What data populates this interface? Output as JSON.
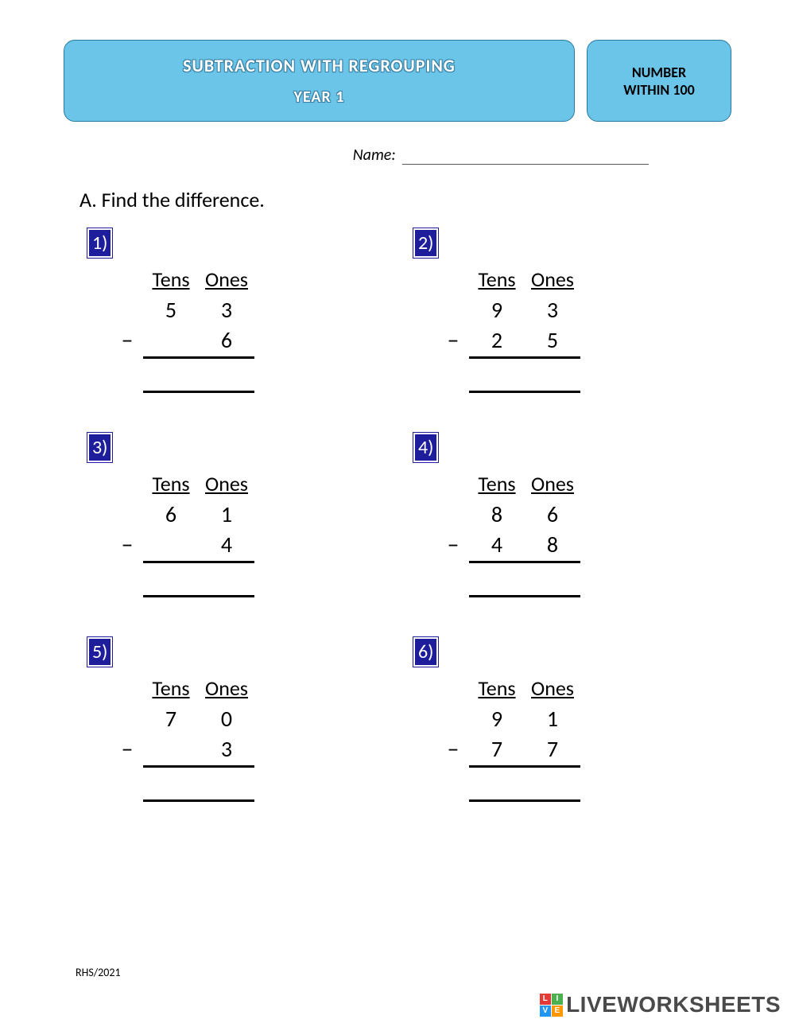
{
  "header": {
    "title": "SUBTRACTION WITH REGROUPING",
    "subtitle": "YEAR 1",
    "side_line1": "NUMBER",
    "side_line2": "WITHIN 100",
    "box_bg": "#6bc5e8",
    "box_border": "#2a7aa0"
  },
  "name_label": "Name:",
  "instruction": "A. Find the difference.",
  "column_headers": {
    "tens": "Tens",
    "ones": "Ones"
  },
  "badge_bg": "#1e1e9c",
  "badge_fg": "#ffffff",
  "problems": [
    {
      "num": "1)",
      "top_tens": "5",
      "top_ones": "3",
      "bot_tens": "",
      "bot_ones": "6"
    },
    {
      "num": "2)",
      "top_tens": "9",
      "top_ones": "3",
      "bot_tens": "2",
      "bot_ones": "5"
    },
    {
      "num": "3)",
      "top_tens": "6",
      "top_ones": "1",
      "bot_tens": "",
      "bot_ones": "4"
    },
    {
      "num": "4)",
      "top_tens": "8",
      "top_ones": "6",
      "bot_tens": "4",
      "bot_ones": "8"
    },
    {
      "num": "5)",
      "top_tens": "7",
      "top_ones": "0",
      "bot_tens": "",
      "bot_ones": "3"
    },
    {
      "num": "6)",
      "top_tens": "9",
      "top_ones": "1",
      "bot_tens": "7",
      "bot_ones": "7"
    }
  ],
  "minus_sign": "–",
  "footer": "RHS/2021",
  "watermark": {
    "text": "LIVEWORKSHEETS",
    "logo_colors": [
      "#e53935",
      "#4caf50",
      "#2196f3",
      "#ff9800"
    ],
    "logo_letters": [
      "L",
      "I",
      "V",
      "E"
    ]
  }
}
